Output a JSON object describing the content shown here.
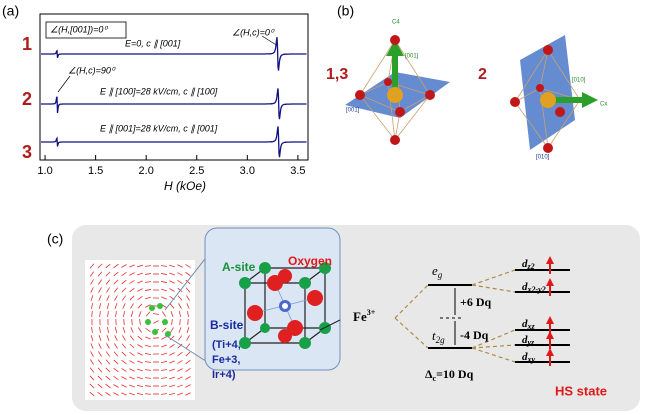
{
  "panel_a": {
    "label": "(a)",
    "rows": [
      "1",
      "2",
      "3"
    ],
    "annotations": {
      "angle_box": "∠(H,[001])=0⁰",
      "e0": "E=0, c ∥ [001]",
      "angle_hc0": "∠(H,c)=0⁰",
      "angle_hc90": "∠(H,c)=90⁰",
      "e100": "E ∥ [100]=28 kV/cm, c ∥ [100]",
      "e001": "E ∥ [001]=28 kV/cm, c ∥ [001]"
    },
    "xlabel": "H (kOe)",
    "xlim": [
      0.95,
      3.6
    ],
    "xticks": [
      {
        "value": 1,
        "label": "1.0"
      },
      1.5,
      {
        "value": 2,
        "label": "2.0"
      },
      2.5,
      {
        "value": 3,
        "label": "3.0"
      },
      3.5
    ]
  },
  "panel_b": {
    "label": "(b)",
    "left": "1,3",
    "right": "2",
    "labels": [
      "C4",
      "[001]",
      "[001]",
      "[010]",
      "Cx",
      "[010]"
    ]
  },
  "panel_c": {
    "label": "(c)",
    "a_site": "A-site",
    "oxygen": "Oxygen",
    "b_site": "B-site",
    "b_ions": [
      "(Ti+4,",
      "Fe+3,",
      "Ir+4)"
    ],
    "ion": {
      "base": "Fe",
      "sup": "3+"
    },
    "eg": {
      "base": "e",
      "sub": "g"
    },
    "t2g": {
      "base": "t",
      "sub": "2g"
    },
    "plus": "+6 Dq",
    "minus": "-4 Dq",
    "delta": {
      "base": "Δ",
      "sub": "c",
      "rest": "=10 Dq"
    },
    "orbitals": [
      {
        "base": "d",
        "sub": "z2"
      },
      {
        "base": "d",
        "sub": "x2-y2"
      },
      {
        "base": "d",
        "sub": "xz"
      },
      {
        "base": "d",
        "sub": "yz"
      },
      {
        "base": "d",
        "sub": "xy"
      }
    ],
    "state": "HS state"
  }
}
